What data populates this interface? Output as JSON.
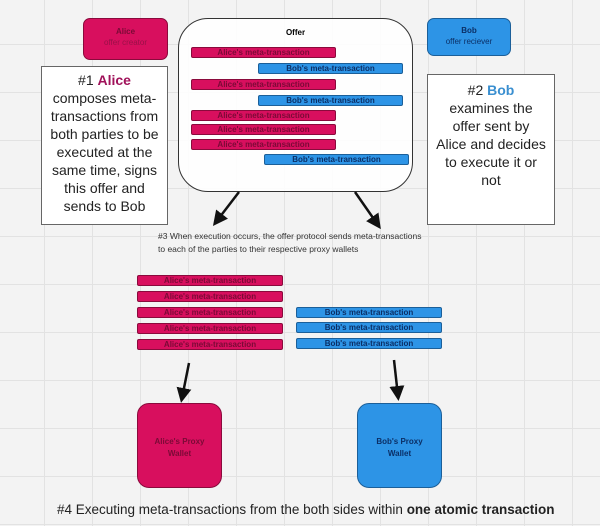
{
  "alice_card": {
    "title": "Alice",
    "subtitle": "offer creator"
  },
  "bob_card": {
    "title": "Bob",
    "subtitle": "offer reciever"
  },
  "offer": {
    "title": "Offer",
    "bars": [
      {
        "party": "alice",
        "label": "Alice's meta-transaction"
      },
      {
        "party": "bob",
        "label": "Bob's meta-transaction"
      },
      {
        "party": "alice",
        "label": "Alice's meta-transaction"
      },
      {
        "party": "bob",
        "label": "Bob's meta-transaction"
      },
      {
        "party": "alice",
        "label": "Alice's meta-transaction"
      },
      {
        "party": "alice",
        "label": "Alice's meta-transaction"
      },
      {
        "party": "alice",
        "label": "Alice's meta-transaction"
      },
      {
        "party": "bob",
        "label": "Bob's meta-transaction"
      }
    ]
  },
  "step1": {
    "prefix": "#1 ",
    "name": "Alice",
    "text": " composes meta-transactions from both parties to be executed at the same time, signs this offer and sends to Bob"
  },
  "step2": {
    "prefix": "#2 ",
    "name": "Bob",
    "text": " examines the offer sent by Alice and decides to execute it or not"
  },
  "step3": {
    "text": "#3 When execution occurs, the offer protocol sends meta-transactions to each of the parties to their respective proxy wallets"
  },
  "alice_txs": [
    "Alice's meta-transaction",
    "Alice's meta-transaction",
    "Alice's meta-transaction",
    "Alice's meta-transaction",
    "Alice's meta-transaction"
  ],
  "bob_txs": [
    "Bob's meta-transaction",
    "Bob's meta-transaction",
    "Bob's meta-transaction"
  ],
  "alice_wallet": {
    "label": "Alice's Proxy Wallet"
  },
  "bob_wallet": {
    "label": "Bob's Proxy Wallet"
  },
  "step4": {
    "text": "#4 Executing meta-transactions from the both sides within ",
    "bold": "one atomic transaction"
  },
  "colors": {
    "alice": "#d80f5e",
    "bob": "#2d94e6",
    "alice_name": "#a0125a",
    "bob_name": "#3a8fd0"
  }
}
